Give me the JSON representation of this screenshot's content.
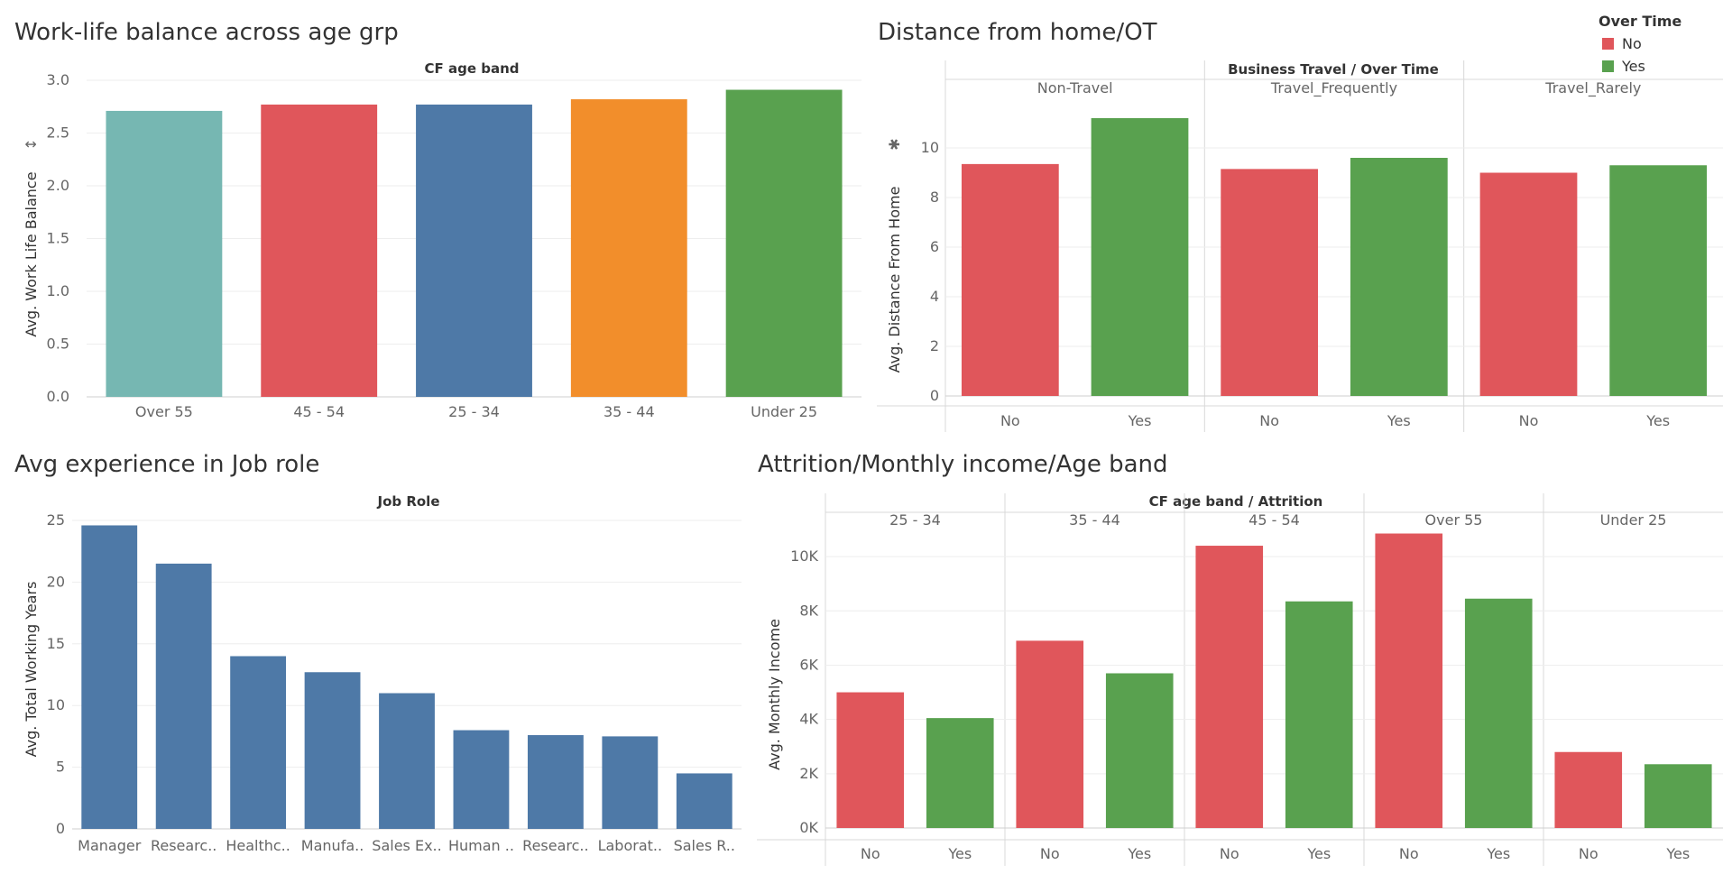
{
  "colors": {
    "no": "#E0565B",
    "yes": "#59A14F",
    "blue": "#4E79A7",
    "teal": "#76B7B2",
    "orange": "#F28E2B",
    "red": "#E0565B",
    "green": "#59A14F"
  },
  "legend": {
    "title": "Over Time",
    "items": [
      {
        "label": "No",
        "color": "#E0565B"
      },
      {
        "label": "Yes",
        "color": "#59A14F"
      }
    ]
  },
  "chart_data": [
    {
      "id": "wlb",
      "type": "bar",
      "title": "Work-life balance across age grp",
      "header": "CF age band",
      "ylabel": "Avg. Work Life Balance",
      "ylim": [
        0,
        3.0
      ],
      "yticks": [
        {
          "v": 0,
          "label": "0.0"
        },
        {
          "v": 0.5,
          "label": "0.5"
        },
        {
          "v": 1.0,
          "label": "1.0"
        },
        {
          "v": 1.5,
          "label": "1.5"
        },
        {
          "v": 2.0,
          "label": "2.0"
        },
        {
          "v": 2.5,
          "label": "2.5"
        },
        {
          "v": 3.0,
          "label": "3.0"
        }
      ],
      "categories": [
        "Over 55",
        "45 - 54",
        "25 - 34",
        "35 - 44",
        "Under 25"
      ],
      "values": [
        2.71,
        2.77,
        2.77,
        2.82,
        2.91
      ],
      "bar_colors": [
        "#76B7B2",
        "#E0565B",
        "#4E79A7",
        "#F28E2B",
        "#59A14F"
      ]
    },
    {
      "id": "dist",
      "type": "bar",
      "title": "Distance from home/OT",
      "header": "Business Travel  /  Over Time",
      "ylabel": "Avg. Distance From Home",
      "ylim": [
        0,
        12
      ],
      "yticks": [
        {
          "v": 0,
          "label": "0"
        },
        {
          "v": 2,
          "label": "2"
        },
        {
          "v": 4,
          "label": "4"
        },
        {
          "v": 6,
          "label": "6"
        },
        {
          "v": 8,
          "label": "8"
        },
        {
          "v": 10,
          "label": "10"
        }
      ],
      "groups": [
        {
          "label": "Non-Travel",
          "categories": [
            "No",
            "Yes"
          ],
          "values": [
            9.35,
            11.2
          ]
        },
        {
          "label": "Travel_Frequently",
          "categories": [
            "No",
            "Yes"
          ],
          "values": [
            9.15,
            9.6
          ]
        },
        {
          "label": "Travel_Rarely",
          "categories": [
            "No",
            "Yes"
          ],
          "values": [
            9.0,
            9.3
          ]
        }
      ]
    },
    {
      "id": "exp",
      "type": "bar",
      "title": "Avg experience in Job role",
      "header": "Job Role",
      "ylabel": "Avg. Total Working Years",
      "ylim": [
        0,
        25
      ],
      "yticks": [
        {
          "v": 0,
          "label": "0"
        },
        {
          "v": 5,
          "label": "5"
        },
        {
          "v": 10,
          "label": "10"
        },
        {
          "v": 15,
          "label": "15"
        },
        {
          "v": 20,
          "label": "20"
        },
        {
          "v": 25,
          "label": "25"
        }
      ],
      "categories": [
        "Manager",
        "Researc..",
        "Healthc..",
        "Manufa..",
        "Sales Ex..",
        "Human ..",
        "Researc..",
        "Laborat..",
        "Sales R.."
      ],
      "values": [
        24.6,
        21.5,
        14.0,
        12.7,
        11.0,
        8.0,
        7.6,
        7.5,
        4.5
      ]
    },
    {
      "id": "income",
      "type": "bar",
      "title": "Attrition/Monthly income/Age band",
      "header": "CF age band  /  Attrition",
      "ylabel": "Avg. Monthly Income",
      "ylim": [
        0,
        11000
      ],
      "yticks": [
        {
          "v": 0,
          "label": "0K"
        },
        {
          "v": 2000,
          "label": "2K"
        },
        {
          "v": 4000,
          "label": "4K"
        },
        {
          "v": 6000,
          "label": "6K"
        },
        {
          "v": 8000,
          "label": "8K"
        },
        {
          "v": 10000,
          "label": "10K"
        }
      ],
      "groups": [
        {
          "label": "25 - 34",
          "categories": [
            "No",
            "Yes"
          ],
          "values": [
            5000,
            4050
          ]
        },
        {
          "label": "35 - 44",
          "categories": [
            "No",
            "Yes"
          ],
          "values": [
            6900,
            5700
          ]
        },
        {
          "label": "45 - 54",
          "categories": [
            "No",
            "Yes"
          ],
          "values": [
            10400,
            8350
          ]
        },
        {
          "label": "Over 55",
          "categories": [
            "No",
            "Yes"
          ],
          "values": [
            10850,
            8450
          ]
        },
        {
          "label": "Under 25",
          "categories": [
            "No",
            "Yes"
          ],
          "values": [
            2800,
            2350
          ]
        }
      ]
    }
  ]
}
